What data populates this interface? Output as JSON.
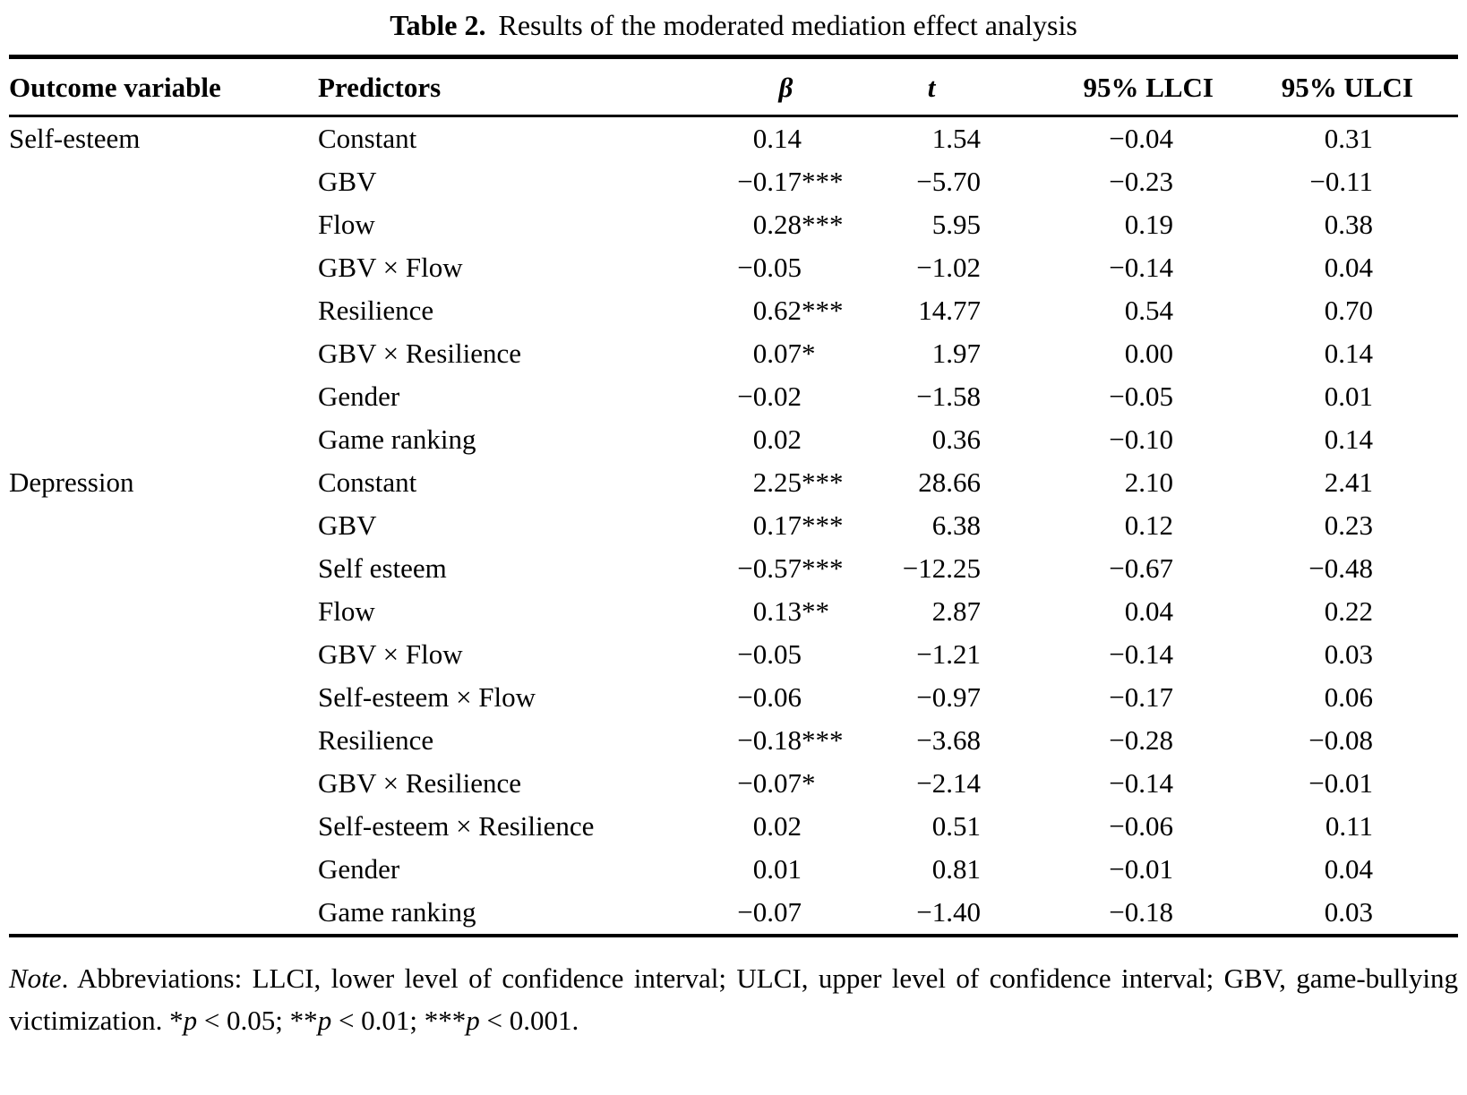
{
  "title": {
    "label": "Table 2.",
    "text": "Results of the moderated mediation effect analysis"
  },
  "table": {
    "headers": [
      "Outcome variable",
      "Predictors",
      "β",
      "t",
      "95% LLCI",
      "95% ULCI"
    ],
    "rows": [
      {
        "outcome": "Self-esteem",
        "predictor": "Constant",
        "beta": "0.14",
        "stars": "",
        "t": "1.54",
        "llci": "−0.04",
        "ulci": "0.31"
      },
      {
        "outcome": "",
        "predictor": "GBV",
        "beta": "−0.17",
        "stars": "***",
        "t": "−5.70",
        "llci": "−0.23",
        "ulci": "−0.11"
      },
      {
        "outcome": "",
        "predictor": "Flow",
        "beta": "0.28",
        "stars": "***",
        "t": "5.95",
        "llci": "0.19",
        "ulci": "0.38"
      },
      {
        "outcome": "",
        "predictor": "GBV × Flow",
        "beta": "−0.05",
        "stars": "",
        "t": "−1.02",
        "llci": "−0.14",
        "ulci": "0.04"
      },
      {
        "outcome": "",
        "predictor": "Resilience",
        "beta": "0.62",
        "stars": "***",
        "t": "14.77",
        "llci": "0.54",
        "ulci": "0.70"
      },
      {
        "outcome": "",
        "predictor": "GBV × Resilience",
        "beta": "0.07",
        "stars": "*",
        "t": "1.97",
        "llci": "0.00",
        "ulci": "0.14"
      },
      {
        "outcome": "",
        "predictor": "Gender",
        "beta": "−0.02",
        "stars": "",
        "t": "−1.58",
        "llci": "−0.05",
        "ulci": "0.01"
      },
      {
        "outcome": "",
        "predictor": "Game ranking",
        "beta": "0.02",
        "stars": "",
        "t": "0.36",
        "llci": "−0.10",
        "ulci": "0.14"
      },
      {
        "outcome": "Depression",
        "predictor": "Constant",
        "beta": "2.25",
        "stars": "***",
        "t": "28.66",
        "llci": "2.10",
        "ulci": "2.41"
      },
      {
        "outcome": "",
        "predictor": "GBV",
        "beta": "0.17",
        "stars": "***",
        "t": "6.38",
        "llci": "0.12",
        "ulci": "0.23"
      },
      {
        "outcome": "",
        "predictor": "Self esteem",
        "beta": "−0.57",
        "stars": "***",
        "t": "−12.25",
        "llci": "−0.67",
        "ulci": "−0.48"
      },
      {
        "outcome": "",
        "predictor": "Flow",
        "beta": "0.13",
        "stars": "**",
        "t": "2.87",
        "llci": "0.04",
        "ulci": "0.22"
      },
      {
        "outcome": "",
        "predictor": "GBV × Flow",
        "beta": "−0.05",
        "stars": "",
        "t": "−1.21",
        "llci": "−0.14",
        "ulci": "0.03"
      },
      {
        "outcome": "",
        "predictor": "Self-esteem × Flow",
        "beta": "−0.06",
        "stars": "",
        "t": "−0.97",
        "llci": "−0.17",
        "ulci": "0.06"
      },
      {
        "outcome": "",
        "predictor": "Resilience",
        "beta": "−0.18",
        "stars": "***",
        "t": "−3.68",
        "llci": "−0.28",
        "ulci": "−0.08"
      },
      {
        "outcome": "",
        "predictor": "GBV × Resilience",
        "beta": "−0.07",
        "stars": "*",
        "t": "−2.14",
        "llci": "−0.14",
        "ulci": "−0.01"
      },
      {
        "outcome": "",
        "predictor": "Self-esteem × Resilience",
        "beta": "0.02",
        "stars": "",
        "t": "0.51",
        "llci": "−0.06",
        "ulci": "0.11"
      },
      {
        "outcome": "",
        "predictor": "Gender",
        "beta": "0.01",
        "stars": "",
        "t": "0.81",
        "llci": "−0.01",
        "ulci": "0.04"
      },
      {
        "outcome": "",
        "predictor": "Game ranking",
        "beta": "−0.07",
        "stars": "",
        "t": "−1.40",
        "llci": "−0.18",
        "ulci": "0.03"
      }
    ]
  },
  "note": {
    "segments": [
      {
        "text": "Note",
        "italic": true
      },
      {
        "text": ". Abbreviations: LLCI, lower level of confidence interval; ULCI, upper level of confidence interval; GBV, game-bullying victimization. *",
        "italic": false
      },
      {
        "text": "p",
        "italic": true
      },
      {
        "text": " < 0.05; **",
        "italic": false
      },
      {
        "text": "p",
        "italic": true
      },
      {
        "text": " < 0.01; ***",
        "italic": false
      },
      {
        "text": "p",
        "italic": true
      },
      {
        "text": " < 0.001.",
        "italic": false
      }
    ]
  }
}
